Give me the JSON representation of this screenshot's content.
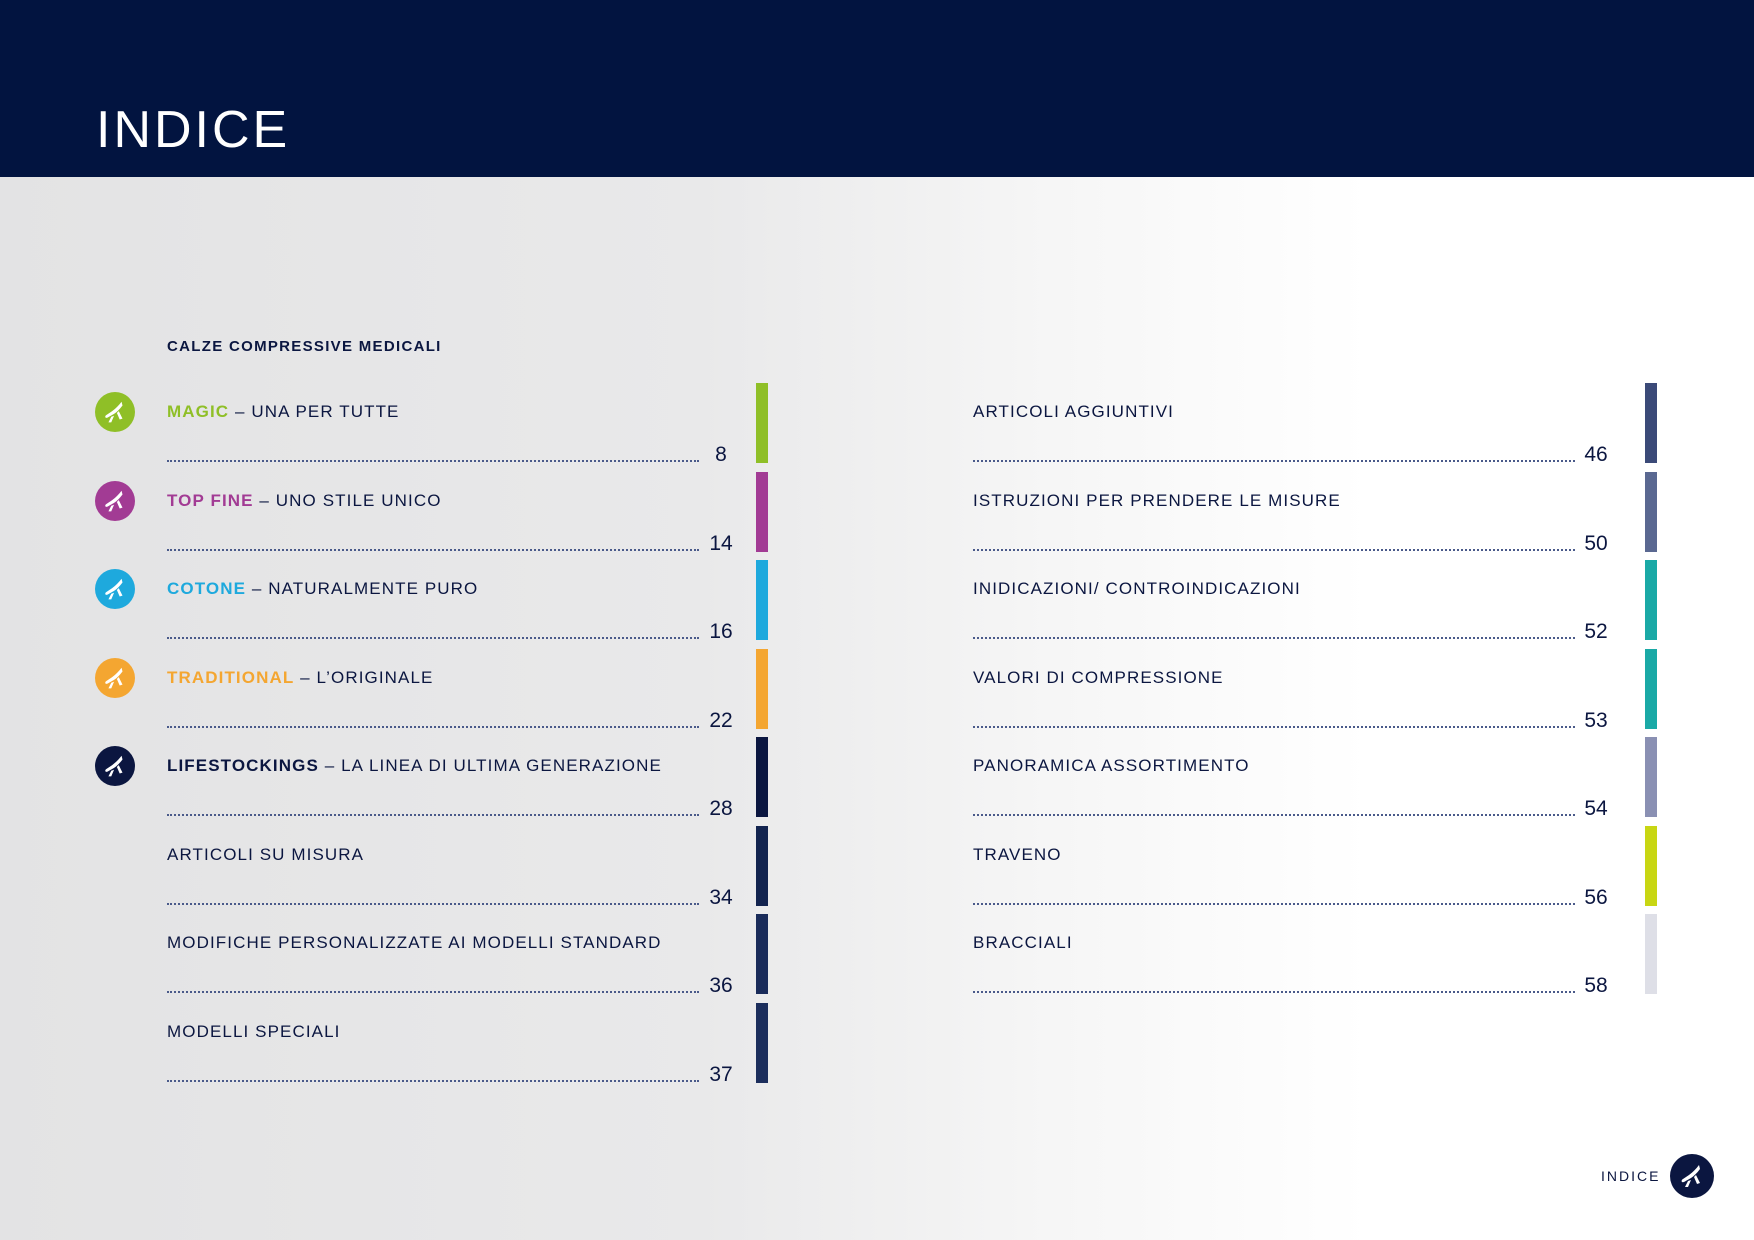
{
  "header": {
    "title": "INDICE"
  },
  "section_title": "CALZE COMPRESSIVE MEDICALI",
  "left_entries": [
    {
      "brand": "MAGIC",
      "text": " – UNA PER TUTTE",
      "page": "8",
      "brand_color": "#8fbf27",
      "bar_color": "#8fbf27",
      "icon": "leg-icon",
      "icon_color": "#8fbf27"
    },
    {
      "brand": "TOP FINE",
      "text": " – UNO STILE UNICO",
      "page": "14",
      "brand_color": "#a23b94",
      "bar_color": "#a23b94",
      "icon": "leg-icon",
      "icon_color": "#a23b94"
    },
    {
      "brand": "COTONE",
      "text": " – NATURALMENTE PURO",
      "page": "16",
      "brand_color": "#1ea9dd",
      "bar_color": "#1ea9dd",
      "icon": "leg-icon",
      "icon_color": "#1ea9dd"
    },
    {
      "brand": "TRADITIONAL",
      "text": " – L’ORIGINALE",
      "page": "22",
      "brand_color": "#f4a631",
      "bar_color": "#f4a631",
      "icon": "leg-icon",
      "icon_color": "#f4a631"
    },
    {
      "brand": "LIFESTOCKINGS",
      "text": " – LA LINEA DI ULTIMA GENERAZIONE",
      "page": "28",
      "brand_color": "#0b1640",
      "bar_color": "#0b1640",
      "icon": "leg-icon",
      "icon_color": "#0b1640"
    },
    {
      "brand": "",
      "text": "ARTICOLI SU MISURA",
      "page": "34",
      "brand_color": "#0b1640",
      "bar_color": "#13244f"
    },
    {
      "brand": "",
      "text": "MODIFICHE PERSONALIZZATE AI MODELLI STANDARD",
      "page": "36",
      "brand_color": "#0b1640",
      "bar_color": "#1a2c5a"
    },
    {
      "brand": "",
      "text": "MODELLI SPECIALI",
      "page": "37",
      "brand_color": "#0b1640",
      "bar_color": "#1c2e5c"
    }
  ],
  "right_entries": [
    {
      "text": "ARTICOLI AGGIUNTIVI",
      "page": "46",
      "bar_color": "#3b4a78"
    },
    {
      "text": "ISTRUZIONI PER PRENDERE LE MISURE",
      "page": "50",
      "bar_color": "#5a6891"
    },
    {
      "text": "INIDICAZIONI/ CONTROINDICAZIONI",
      "page": "52",
      "bar_color": "#1aa9a6"
    },
    {
      "text": "VALORI DI COMPRESSIONE",
      "page": "53",
      "bar_color": "#1aa9a6"
    },
    {
      "text": "PANORAMICA ASSORTIMENTO",
      "page": "54",
      "bar_color": "#8a90b3"
    },
    {
      "text": "TRAVENO",
      "page": "56",
      "bar_color": "#c8d613"
    },
    {
      "text": "BRACCIALI",
      "page": "58",
      "bar_color": "#dedfe7"
    }
  ],
  "footer": {
    "label": "INDICE",
    "logo": "brand-logo-icon",
    "logo_color": "#0b1640"
  }
}
